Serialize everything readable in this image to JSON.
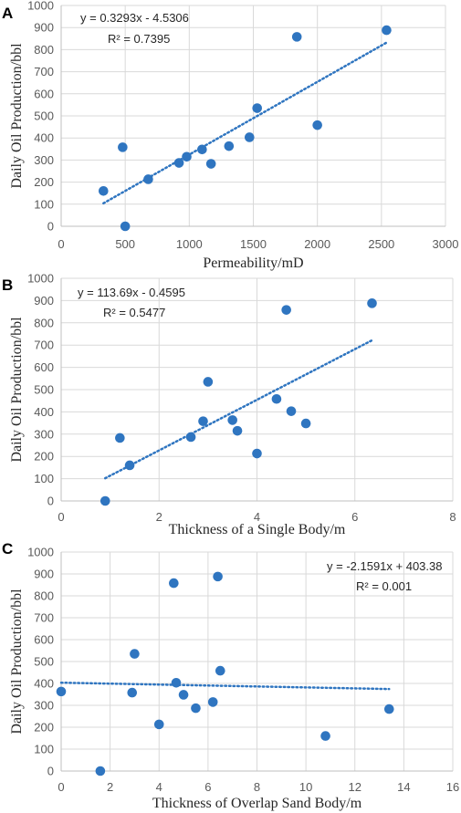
{
  "style": {
    "point_color": "#2f75c0",
    "trend_color": "#2f75c0",
    "grid": true
  },
  "chart_data": [
    {
      "panel": "A",
      "type": "scatter",
      "xlabel": "Permeability/mD",
      "ylabel": "Daily Oil Production/bbl",
      "xlim": [
        0,
        3000
      ],
      "ylim": [
        0,
        1000
      ],
      "xticks": [
        0,
        500,
        1000,
        1500,
        2000,
        2500,
        3000
      ],
      "yticks": [
        0,
        100,
        200,
        300,
        400,
        500,
        600,
        700,
        800,
        900,
        1000
      ],
      "equation": "y = 0.3293x - 4.5306",
      "r2": "R² = 0.7395",
      "trendline": {
        "slope": 0.3293,
        "intercept": -4.5306,
        "x_range": [
          330,
          2540
        ]
      },
      "points": [
        {
          "x": 330,
          "y": 160
        },
        {
          "x": 480,
          "y": 358
        },
        {
          "x": 500,
          "y": 0
        },
        {
          "x": 680,
          "y": 213
        },
        {
          "x": 920,
          "y": 287
        },
        {
          "x": 980,
          "y": 315
        },
        {
          "x": 1100,
          "y": 348
        },
        {
          "x": 1170,
          "y": 283
        },
        {
          "x": 1310,
          "y": 363
        },
        {
          "x": 1470,
          "y": 403
        },
        {
          "x": 1530,
          "y": 535
        },
        {
          "x": 1840,
          "y": 858
        },
        {
          "x": 2000,
          "y": 458
        },
        {
          "x": 2540,
          "y": 888
        }
      ]
    },
    {
      "panel": "B",
      "type": "scatter",
      "xlabel": "Thickness of a Single Body/m",
      "ylabel": "Daily Oil Production/bbl",
      "xlim": [
        0,
        8
      ],
      "ylim": [
        0,
        1000
      ],
      "xticks": [
        0,
        2,
        4,
        6,
        8
      ],
      "yticks": [
        0,
        100,
        200,
        300,
        400,
        500,
        600,
        700,
        800,
        900,
        1000
      ],
      "equation": "y = 113.69x - 0.4595",
      "r2": "R² = 0.5477",
      "trendline": {
        "slope": 113.69,
        "intercept": -0.4595,
        "x_range": [
          0.9,
          6.35
        ]
      },
      "points": [
        {
          "x": 0.9,
          "y": 0
        },
        {
          "x": 1.2,
          "y": 283
        },
        {
          "x": 1.4,
          "y": 160
        },
        {
          "x": 2.65,
          "y": 287
        },
        {
          "x": 2.9,
          "y": 358
        },
        {
          "x": 3.0,
          "y": 535
        },
        {
          "x": 3.5,
          "y": 363
        },
        {
          "x": 3.6,
          "y": 315
        },
        {
          "x": 4.0,
          "y": 213
        },
        {
          "x": 4.4,
          "y": 458
        },
        {
          "x": 4.6,
          "y": 858
        },
        {
          "x": 4.7,
          "y": 403
        },
        {
          "x": 5.0,
          "y": 348
        },
        {
          "x": 6.35,
          "y": 888
        }
      ]
    },
    {
      "panel": "C",
      "type": "scatter",
      "xlabel": "Thickness of Overlap Sand Body/m",
      "ylabel": "Daily Oil Production/bbl",
      "xlim": [
        0,
        16
      ],
      "ylim": [
        0,
        1000
      ],
      "xticks": [
        0,
        2,
        4,
        6,
        8,
        10,
        12,
        14,
        16
      ],
      "yticks": [
        0,
        100,
        200,
        300,
        400,
        500,
        600,
        700,
        800,
        900,
        1000
      ],
      "equation": "y = -2.1591x + 403.38",
      "r2": "R² = 0.001",
      "trendline": {
        "slope": -2.1591,
        "intercept": 403.38,
        "x_range": [
          0,
          13.4
        ]
      },
      "points": [
        {
          "x": 0,
          "y": 363
        },
        {
          "x": 1.6,
          "y": 0
        },
        {
          "x": 2.9,
          "y": 358
        },
        {
          "x": 3.0,
          "y": 535
        },
        {
          "x": 4.0,
          "y": 213
        },
        {
          "x": 4.6,
          "y": 858
        },
        {
          "x": 4.7,
          "y": 403
        },
        {
          "x": 5.0,
          "y": 348
        },
        {
          "x": 5.5,
          "y": 287
        },
        {
          "x": 6.2,
          "y": 315
        },
        {
          "x": 6.4,
          "y": 888
        },
        {
          "x": 6.5,
          "y": 458
        },
        {
          "x": 10.8,
          "y": 160
        },
        {
          "x": 13.4,
          "y": 283
        }
      ]
    }
  ]
}
